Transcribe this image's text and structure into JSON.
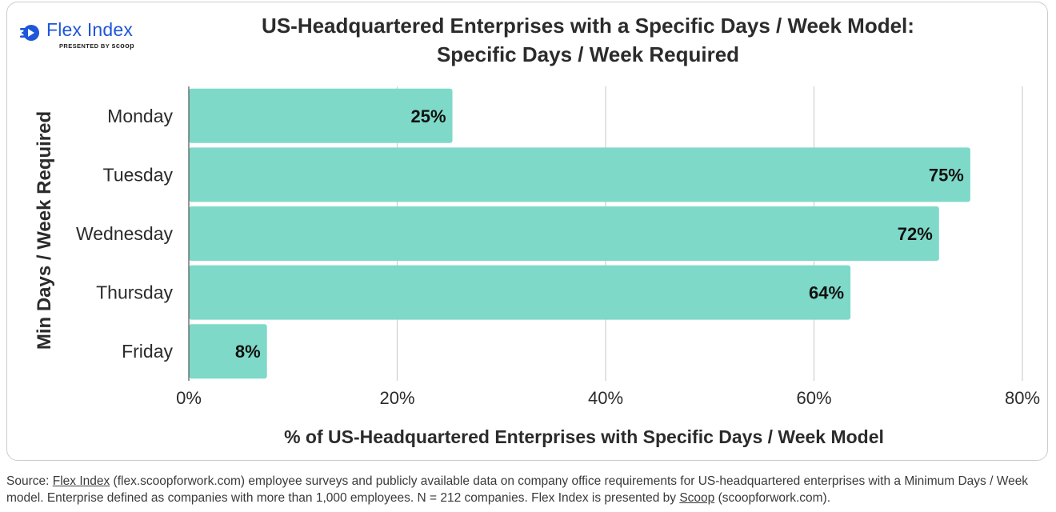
{
  "logo": {
    "name": "Flex Index",
    "presented_by": "PRESENTED BY",
    "partner": "scoop"
  },
  "colors": {
    "bar": "#7ed9c8",
    "grid": "#cfcfcf",
    "axis_line": "#555555",
    "brand_blue": "#1e56d9"
  },
  "chart_data": {
    "type": "bar",
    "orientation": "horizontal",
    "title": "US-Headquartered Enterprises with a Specific Days / Week Model:",
    "subtitle": "Specific Days / Week Required",
    "xlabel": "% of US-Headquartered Enterprises with Specific Days / Week Model",
    "ylabel": "Min Days / Week Required",
    "categories": [
      "Monday",
      "Tuesday",
      "Wednesday",
      "Thursday",
      "Friday"
    ],
    "values": [
      25.3,
      75,
      72,
      63.5,
      7.5
    ],
    "data_labels": [
      "25%",
      "75%",
      "72%",
      "64%",
      "8%"
    ],
    "xlim": [
      0,
      80
    ],
    "xticks": [
      0,
      20,
      40,
      60,
      80
    ],
    "xtick_labels": [
      "0%",
      "20%",
      "40%",
      "60%",
      "80%"
    ],
    "grid": "vertical",
    "legend": "none"
  },
  "source": {
    "prefix": "Source: ",
    "link1": "Flex Index",
    "text1": " (flex.scoopforwork.com) employee surveys and publicly available data on company office requirements for US-headquartered enterprises with a Minimum Days / Week model. Enterprise defined as companies with more than 1,000 employees. N = 212 companies. Flex Index is presented by ",
    "link2": "Scoop",
    "text2": " (scoopforwork.com)."
  }
}
